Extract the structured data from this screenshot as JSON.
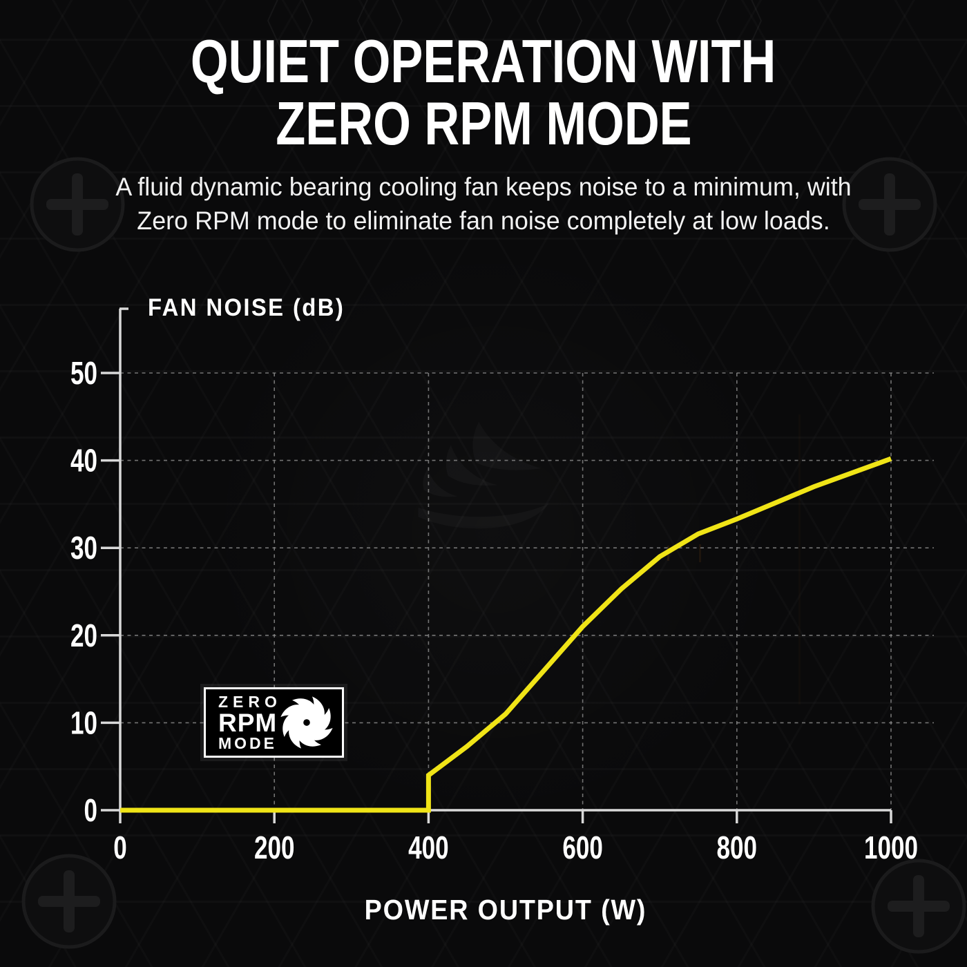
{
  "header": {
    "title_line1": "QUIET OPERATION WITH",
    "title_line2": "ZERO RPM MODE",
    "subtitle_line1": "A fluid dynamic bearing cooling fan keeps noise to a minimum, with",
    "subtitle_line2": "Zero RPM mode to eliminate fan noise completely at low loads."
  },
  "badge": {
    "word1": "ZERO",
    "word2": "RPM",
    "word3": "MODE",
    "icon": "fan-icon"
  },
  "colors": {
    "background": "#0a0a0b",
    "curve": "#f0e417",
    "axis": "#d9d9d9",
    "grid": "#8f8f8f",
    "text": "#ffffff"
  },
  "chart_data": {
    "type": "line",
    "title": "",
    "xlabel": "POWER OUTPUT (W)",
    "ylabel": "FAN NOISE (dB)",
    "xlim": [
      0,
      1000
    ],
    "ylim": [
      0,
      50
    ],
    "x_ticks": [
      0,
      200,
      400,
      600,
      800,
      1000
    ],
    "y_ticks": [
      0,
      10,
      20,
      30,
      40,
      50
    ],
    "grid": true,
    "legend_position": "none",
    "series": [
      {
        "name": "Fan noise (dB) vs power output (W)",
        "points": [
          [
            0,
            0
          ],
          [
            400,
            0
          ],
          [
            400,
            4
          ],
          [
            450,
            7.3
          ],
          [
            500,
            11
          ],
          [
            550,
            16
          ],
          [
            600,
            21
          ],
          [
            650,
            25.3
          ],
          [
            700,
            29
          ],
          [
            750,
            31.6
          ],
          [
            800,
            33.3
          ],
          [
            900,
            37
          ],
          [
            1000,
            40.2
          ]
        ]
      }
    ]
  }
}
